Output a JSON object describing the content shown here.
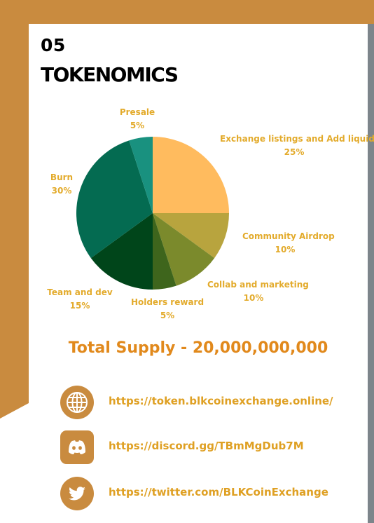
{
  "header": {
    "section_number": "05",
    "section_title": "TOKENOMICS"
  },
  "chart_data": {
    "type": "pie",
    "slices": [
      {
        "name": "Exchange listings and Add liquidity",
        "value": 25,
        "label": "25%",
        "color": "#ffbb5e"
      },
      {
        "name": "Community Airdrop",
        "value": 10,
        "label": "10%",
        "color": "#b8a43e"
      },
      {
        "name": "Collab and marketing",
        "value": 10,
        "label": "10%",
        "color": "#7b8a2c"
      },
      {
        "name": "Holders reward",
        "value": 5,
        "label": "5%",
        "color": "#3e651c"
      },
      {
        "name": "Team and dev",
        "value": 15,
        "label": "15%",
        "color": "#00451a"
      },
      {
        "name": "Burn",
        "value": 30,
        "label": "30%",
        "color": "#046b51"
      },
      {
        "name": "Presale",
        "value": 5,
        "label": "5%",
        "color": "#19917f"
      }
    ]
  },
  "total_supply": "Total Supply - 20,000,000,000",
  "links": [
    {
      "icon": "globe-icon",
      "url": "https://token.blkcoinexchange.online/"
    },
    {
      "icon": "discord-icon",
      "url": "https://discord.gg/TBmMgDub7M"
    },
    {
      "icon": "twitter-icon",
      "url": "https://twitter.com/BLKCoinExchange"
    }
  ],
  "colors": {
    "accent": "#c98b3f",
    "label": "#e3ab2c",
    "total": "#e1891c",
    "link": "#dfa023"
  }
}
